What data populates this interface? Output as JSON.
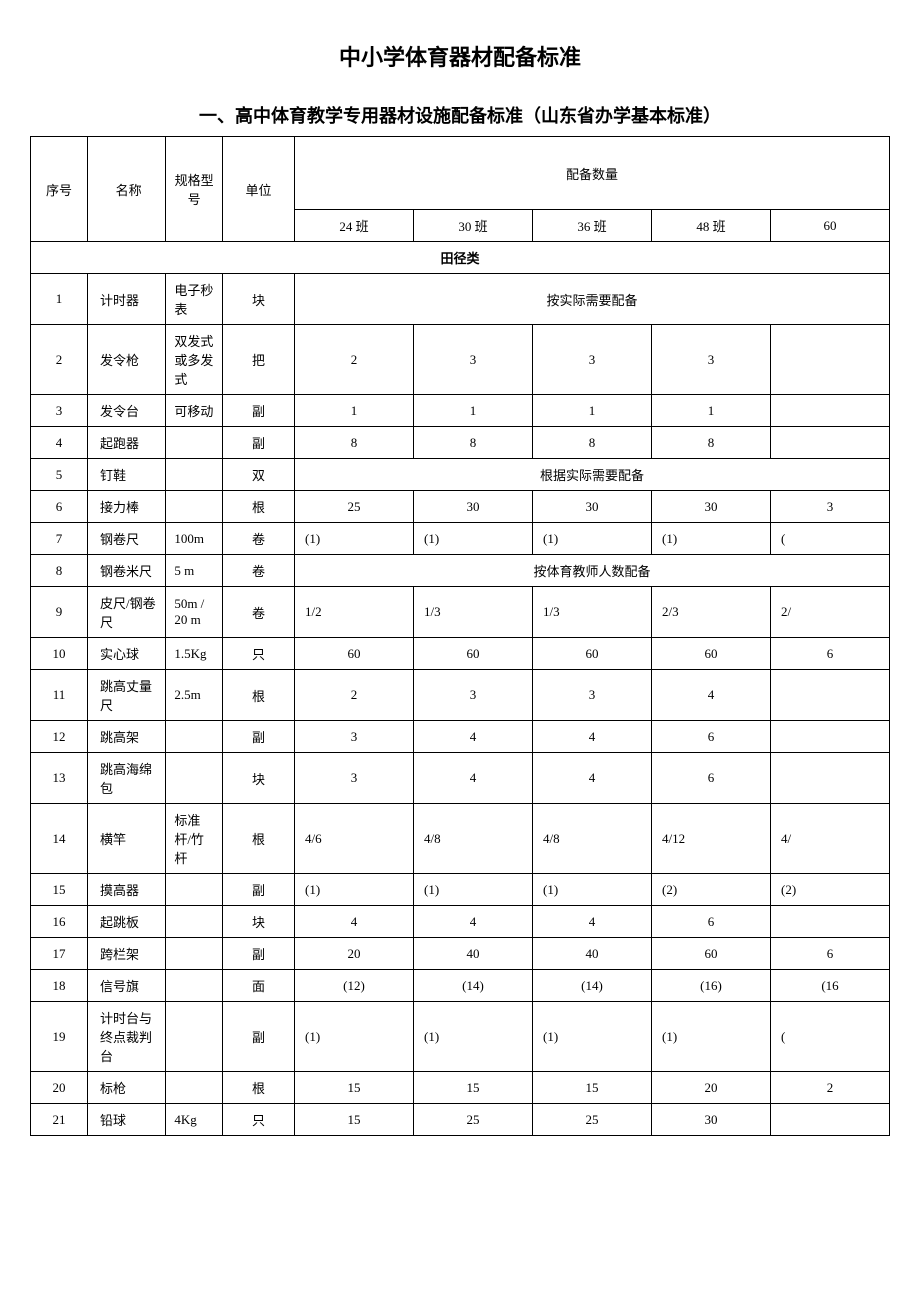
{
  "title": "中小学体育器材配备标准",
  "subtitle": "一、高中体育教学专用器材设施配备标准（山东省办学基本标准）",
  "headers": {
    "idx": "序号",
    "name": "名称",
    "spec": "规格型号",
    "unit": "单位",
    "qty": "配备数量",
    "c24": "24 班",
    "c30": "30 班",
    "c36": "36 班",
    "c48": "48 班",
    "c60": "60"
  },
  "category": "田径类",
  "rows": [
    {
      "idx": "1",
      "name": "计时器",
      "spec": "电子秒表",
      "unit": "块",
      "note": "按实际需要配备"
    },
    {
      "idx": "2",
      "name": "发令枪",
      "spec": "双发式或多发式",
      "unit": "把",
      "q": [
        "2",
        "3",
        "3",
        "3",
        ""
      ]
    },
    {
      "idx": "3",
      "name": "发令台",
      "spec": "可移动",
      "unit": "副",
      "q": [
        "1",
        "1",
        "1",
        "1",
        ""
      ]
    },
    {
      "idx": "4",
      "name": "起跑器",
      "spec": "",
      "unit": "副",
      "q": [
        "8",
        "8",
        "8",
        "8",
        ""
      ]
    },
    {
      "idx": "5",
      "name": "钉鞋",
      "spec": "",
      "unit": "双",
      "note": "根据实际需要配备"
    },
    {
      "idx": "6",
      "name": "接力棒",
      "spec": "",
      "unit": "根",
      "q": [
        "25",
        "30",
        "30",
        "30",
        "3"
      ]
    },
    {
      "idx": "7",
      "name": "钢卷尺",
      "spec": "100m",
      "unit": "卷",
      "q": [
        "(1)",
        "(1)",
        "(1)",
        "(1)",
        "("
      ],
      "left": true
    },
    {
      "idx": "8",
      "name": "钢卷米尺",
      "spec": "5 m",
      "unit": "卷",
      "note": "按体育教师人数配备"
    },
    {
      "idx": "9",
      "name": "皮尺/钢卷尺",
      "spec": "50m / 20 m",
      "unit": "卷",
      "q": [
        "1/2",
        "1/3",
        "1/3",
        "2/3",
        "2/"
      ],
      "left": true
    },
    {
      "idx": "10",
      "name": "实心球",
      "spec": "1.5Kg",
      "unit": "只",
      "q": [
        "60",
        "60",
        "60",
        "60",
        "6"
      ]
    },
    {
      "idx": "11",
      "name": "跳高丈量尺",
      "spec": "2.5m",
      "unit": "根",
      "q": [
        "2",
        "3",
        "3",
        "4",
        ""
      ]
    },
    {
      "idx": "12",
      "name": "跳高架",
      "spec": "",
      "unit": "副",
      "q": [
        "3",
        "4",
        "4",
        "6",
        ""
      ]
    },
    {
      "idx": "13",
      "name": "跳高海绵包",
      "spec": "",
      "unit": "块",
      "q": [
        "3",
        "4",
        "4",
        "6",
        ""
      ]
    },
    {
      "idx": "14",
      "name": "横竿",
      "spec": "标准杆/竹杆",
      "unit": "根",
      "q": [
        "4/6",
        "4/8",
        "4/8",
        "4/12",
        "4/"
      ],
      "left": true
    },
    {
      "idx": "15",
      "name": "摸高器",
      "spec": "",
      "unit": "副",
      "q": [
        "(1)",
        "(1)",
        "(1)",
        "(2)",
        "(2)"
      ],
      "left": true
    },
    {
      "idx": "16",
      "name": "起跳板",
      "spec": "",
      "unit": "块",
      "q": [
        "4",
        "4",
        "4",
        "6",
        ""
      ]
    },
    {
      "idx": "17",
      "name": "跨栏架",
      "spec": "",
      "unit": "副",
      "q": [
        "20",
        "40",
        "40",
        "60",
        "6"
      ]
    },
    {
      "idx": "18",
      "name": "信号旗",
      "spec": "",
      "unit": "面",
      "q": [
        "(12)",
        "(14)",
        "(14)",
        "(16)",
        "(16"
      ]
    },
    {
      "idx": "19",
      "name": "计时台与终点裁判台",
      "spec": "",
      "unit": "副",
      "q": [
        "(1)",
        "(1)",
        "(1)",
        "(1)",
        "("
      ],
      "left": true
    },
    {
      "idx": "20",
      "name": "标枪",
      "spec": "",
      "unit": "根",
      "q": [
        "15",
        "15",
        "15",
        "20",
        "2"
      ]
    },
    {
      "idx": "21",
      "name": "铅球",
      "spec": "4Kg",
      "unit": "只",
      "q": [
        "15",
        "25",
        "25",
        "30",
        ""
      ]
    }
  ]
}
